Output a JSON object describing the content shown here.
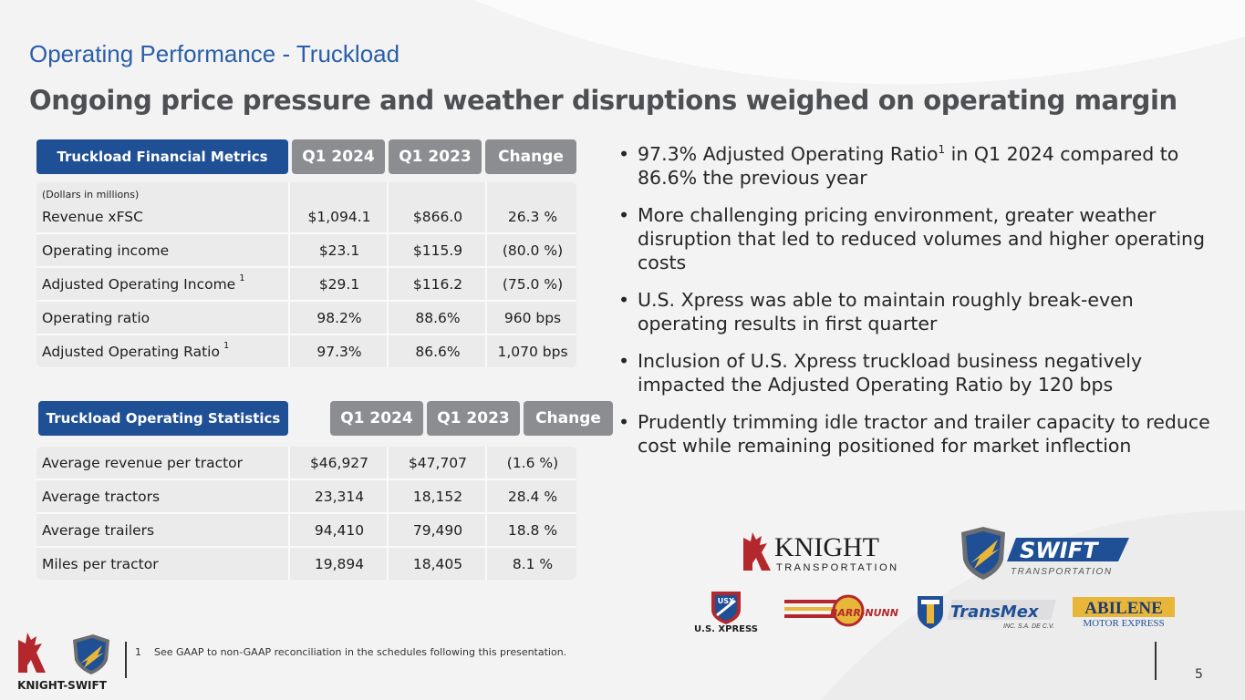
{
  "section_title": "Operating Performance - Truckload",
  "headline": "Ongoing price pressure and weather disruptions weighed on operating margin",
  "financial_table": {
    "title": "Truckload Financial Metrics",
    "columns": [
      "Q1 2024",
      "Q1 2023",
      "Change"
    ],
    "note": "(Dollars in millions)",
    "rows": [
      {
        "label": "Revenue xFSC",
        "sup": "",
        "q1_2024": "$1,094.1",
        "q1_2023": "$866.0",
        "change": "26.3 %"
      },
      {
        "label": "Operating income",
        "sup": "",
        "q1_2024": "$23.1",
        "q1_2023": "$115.9",
        "change": "(80.0 %)"
      },
      {
        "label": "Adjusted Operating Income",
        "sup": "1",
        "q1_2024": "$29.1",
        "q1_2023": "$116.2",
        "change": "(75.0 %)"
      },
      {
        "label": "Operating ratio",
        "sup": "",
        "q1_2024": "98.2%",
        "q1_2023": "88.6%",
        "change": "960 bps"
      },
      {
        "label": "Adjusted Operating Ratio",
        "sup": "1",
        "q1_2024": "97.3%",
        "q1_2023": "86.6%",
        "change": "1,070 bps"
      }
    ]
  },
  "statistics_table": {
    "title": "Truckload Operating Statistics",
    "columns": [
      "Q1 2024",
      "Q1 2023",
      "Change"
    ],
    "rows": [
      {
        "label": "Average revenue per tractor",
        "q1_2024": "$46,927",
        "q1_2023": "$47,707",
        "change": "(1.6 %)"
      },
      {
        "label": "Average tractors",
        "q1_2024": "23,314",
        "q1_2023": "18,152",
        "change": "28.4 %"
      },
      {
        "label": "Average trailers",
        "q1_2024": "94,410",
        "q1_2023": "79,490",
        "change": "18.8 %"
      },
      {
        "label": "Miles per tractor",
        "q1_2024": "19,894",
        "q1_2023": "18,405",
        "change": "8.1 %"
      }
    ]
  },
  "bullets": [
    {
      "pre": "97.3% Adjusted Operating Ratio",
      "sup": "1",
      "post": " in Q1 2024 compared to 86.6% the previous year"
    },
    {
      "pre": "More challenging pricing environment, greater weather disruption that led to reduced volumes and higher operating costs",
      "sup": "",
      "post": ""
    },
    {
      "pre": "U.S. Xpress was able to maintain roughly break-even operating results in first quarter",
      "sup": "",
      "post": ""
    },
    {
      "pre": "Inclusion of U.S. Xpress truckload business negatively impacted the Adjusted Operating Ratio by 120 bps",
      "sup": "",
      "post": ""
    },
    {
      "pre": "Prudently trimming idle tractor and trailer capacity to reduce cost while remaining positioned for market inflection",
      "sup": "",
      "post": ""
    }
  ],
  "logos": {
    "knight": {
      "name": "KNIGHT",
      "sub": "TRANSPORTATION"
    },
    "swift": {
      "name": "SWIFT",
      "sub": "TRANSPORTATION"
    },
    "usx": {
      "badge": "USX",
      "name": "U.S. XPRESS"
    },
    "barr_nunn": {
      "name": "BARR-NUNN"
    },
    "transmex": {
      "name": "TransMex",
      "sub": "INC. S.A. DE C.V."
    },
    "abilene": {
      "name": "ABILENE",
      "sub": "MOTOR EXPRESS"
    },
    "corporate": {
      "name": "KNIGHT-SWIFT"
    }
  },
  "footnote": {
    "number": "1",
    "text": "See GAAP to non-GAAP reconciliation in the schedules following this presentation."
  },
  "page_number": "5",
  "colors": {
    "title_blue": "#2a5ea8",
    "header_navy": "#1f4f94",
    "header_gray": "#8c8d90",
    "row_bg": "#ebebec",
    "knight_red": "#b3282d"
  }
}
